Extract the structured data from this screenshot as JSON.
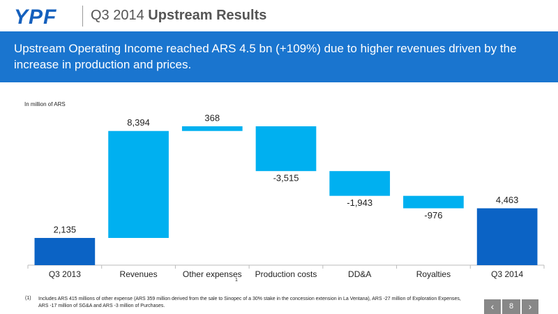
{
  "header": {
    "logo": "YPF",
    "title": "Q3 2014",
    "title_bold": "Upstream Results"
  },
  "banner": "Upstream Operating Income reached ARS 4.5 bn (+109%) due to higher revenues driven by the increase in production and prices.",
  "chart_data": {
    "type": "waterfall",
    "unit_label": "In million of ARS",
    "categories": [
      "Q3 2013",
      "Revenues",
      "Other expenses",
      "Production costs",
      "DD&A",
      "Royalties",
      "Q3 2014"
    ],
    "footnote_ref": "1",
    "values": [
      2135,
      8394,
      368,
      -3515,
      -1943,
      -976,
      4463
    ],
    "value_labels": [
      "2,135",
      "8,394",
      "368",
      "-3,515",
      "-1,943",
      "-976",
      "4,463"
    ],
    "measure": [
      "total",
      "relative",
      "relative",
      "relative",
      "relative",
      "relative",
      "total"
    ],
    "total_color": "#0b63c5",
    "delta_color": "#00b0f0"
  },
  "footnote": {
    "marker": "(1)",
    "text": "Includes ARS 415 millions of other expense (ARS 359 million derived from the sale to Sinopec of a 30% stake in the concession extension in La Ventana), ARS -27 million of Exploration Expenses, ARS -17 million of SG&A and ARS -3 million of Purchases."
  },
  "page_number": "8"
}
